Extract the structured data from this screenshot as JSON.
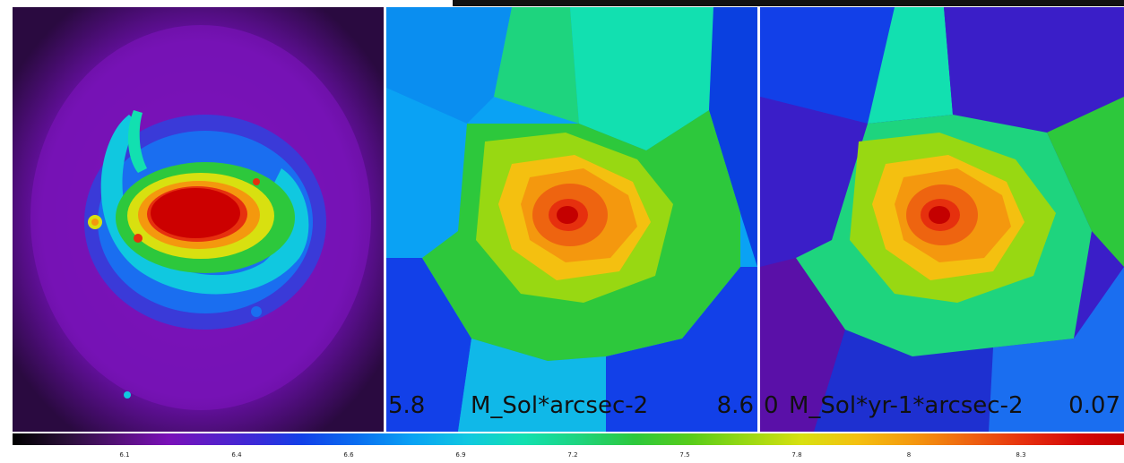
{
  "panels": [
    {
      "name": "image-panel"
    },
    {
      "name": "voronoi-density-panel",
      "range_min": "5.8",
      "unit": "M_Sol*arcsec-2",
      "range_max": "8.6"
    },
    {
      "name": "voronoi-rate-panel",
      "range_min": "0",
      "unit": "M_Sol*yr-1*arcsec-2",
      "range_max": "0.07"
    }
  ],
  "colorbar": {
    "ticks": [
      "6.1",
      "6.4",
      "6.6",
      "6.9",
      "7.2",
      "7.5",
      "7.8",
      "8",
      "8.3"
    ]
  },
  "colors": {
    "background": "#7a10b8",
    "core": "#cc0000"
  }
}
